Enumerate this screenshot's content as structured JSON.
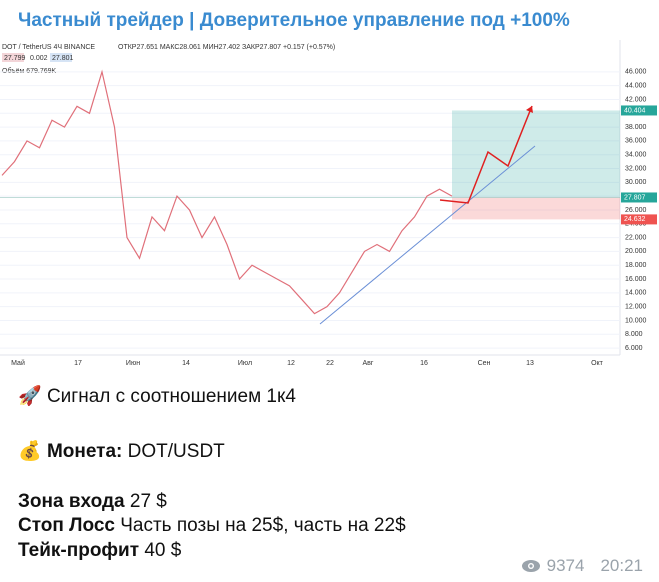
{
  "message": {
    "title": "Частный трейдер | Доверительное управление под +100%",
    "chart_data": {
      "type": "line",
      "symbol": "DOT / TetherUS  4Ч  BINANCE",
      "ohlc": "ОТКР27.651  МАКС28.061  МИН27.402  ЗАКР27.807  +0.157 (+0.57%)",
      "bid": "27.799",
      "spread": "0.002",
      "ask": "27.801",
      "volume": "Объём  679.769K",
      "x_labels": [
        "Май",
        "17",
        "Июн",
        "14",
        "Июл",
        "12",
        "22",
        "Авг",
        "16",
        "Сен",
        "13",
        "Окт"
      ],
      "series": [
        {
          "color": "#e0707a",
          "values": [
            31,
            33,
            36,
            35,
            39,
            38,
            41,
            40,
            46,
            38,
            22,
            19,
            25,
            23,
            28,
            26,
            22,
            25,
            21,
            16,
            18,
            17,
            16,
            15,
            13,
            11,
            12,
            14,
            17,
            20,
            21,
            20,
            23,
            25,
            28,
            29,
            28
          ]
        }
      ],
      "ylim": [
        5,
        48
      ],
      "yticks": [
        {
          "value": 6,
          "label": "6.000"
        },
        {
          "value": 8,
          "label": "8.000"
        },
        {
          "value": 10,
          "label": "10.000"
        },
        {
          "value": 12,
          "label": "12.000"
        },
        {
          "value": 14,
          "label": "14.000"
        },
        {
          "value": 16,
          "label": "16.000"
        },
        {
          "value": 18,
          "label": "18.000"
        },
        {
          "value": 20,
          "label": "20.000"
        },
        {
          "value": 22,
          "label": "22.000"
        },
        {
          "value": 24,
          "label": "24.000"
        },
        {
          "value": 26,
          "label": "26.000"
        },
        {
          "value": 28,
          "label": "28.000"
        },
        {
          "value": 30,
          "label": "30.000"
        },
        {
          "value": 32,
          "label": "32.000"
        },
        {
          "value": 34,
          "label": "34.000"
        },
        {
          "value": 36,
          "label": "36.000"
        },
        {
          "value": 38,
          "label": "38.000"
        },
        {
          "value": 40,
          "label": "40.000"
        },
        {
          "value": 42,
          "label": "42.000"
        },
        {
          "value": 44,
          "label": "44.000"
        },
        {
          "value": 46,
          "label": "46.000"
        }
      ],
      "levels": {
        "take": {
          "value": 40.404,
          "label": "40.404",
          "color": "#26a69a"
        },
        "entry": {
          "value": 27.807,
          "label": "27.807",
          "color": "#26a69a"
        },
        "stop": {
          "value": 24.632,
          "label": "24.632",
          "color": "#ef5350"
        }
      }
    },
    "signal": {
      "icon": "🚀",
      "text": "Сигнал с соотношением 1к4"
    },
    "coin": {
      "icon": "💰",
      "label": "Монета:",
      "text": "DOT/USDT"
    },
    "lines": [
      {
        "label": "Зона входа",
        "text": "27 $"
      },
      {
        "label": "Стоп Лосс",
        "text": "Часть позы на 25$, часть на 22$"
      },
      {
        "label": "Тейк-профит",
        "text": "40 $"
      }
    ],
    "views": "9374",
    "time": "20:21"
  }
}
